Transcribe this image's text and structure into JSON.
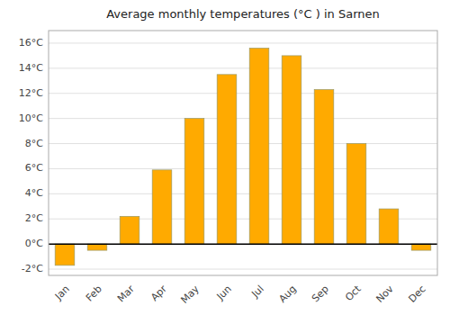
{
  "chart_data": {
    "type": "bar",
    "title": "Average monthly temperatures (°C ) in Sarnen",
    "categories": [
      "Jan",
      "Feb",
      "Mar",
      "Apr",
      "May",
      "Jun",
      "Jul",
      "Aug",
      "Sep",
      "Oct",
      "Nov",
      "Dec"
    ],
    "values": [
      -1.7,
      -0.5,
      2.2,
      5.9,
      10.0,
      13.5,
      15.6,
      15.0,
      12.3,
      8.0,
      2.8,
      -0.5
    ],
    "color": "#FFAA00",
    "ylim": [
      -2.5,
      17.0
    ],
    "yticks": [
      {
        "value": -2,
        "label": "-2°C"
      },
      {
        "value": 0,
        "label": "0°C"
      },
      {
        "value": 2,
        "label": "2°C"
      },
      {
        "value": 4,
        "label": "4°C"
      },
      {
        "value": 6,
        "label": "6°C"
      },
      {
        "value": 8,
        "label": "8°C"
      },
      {
        "value": 10,
        "label": "10°C"
      },
      {
        "value": 12,
        "label": "12°C"
      },
      {
        "value": 14,
        "label": "14°C"
      },
      {
        "value": 16,
        "label": "16°C"
      }
    ],
    "grid": true
  }
}
